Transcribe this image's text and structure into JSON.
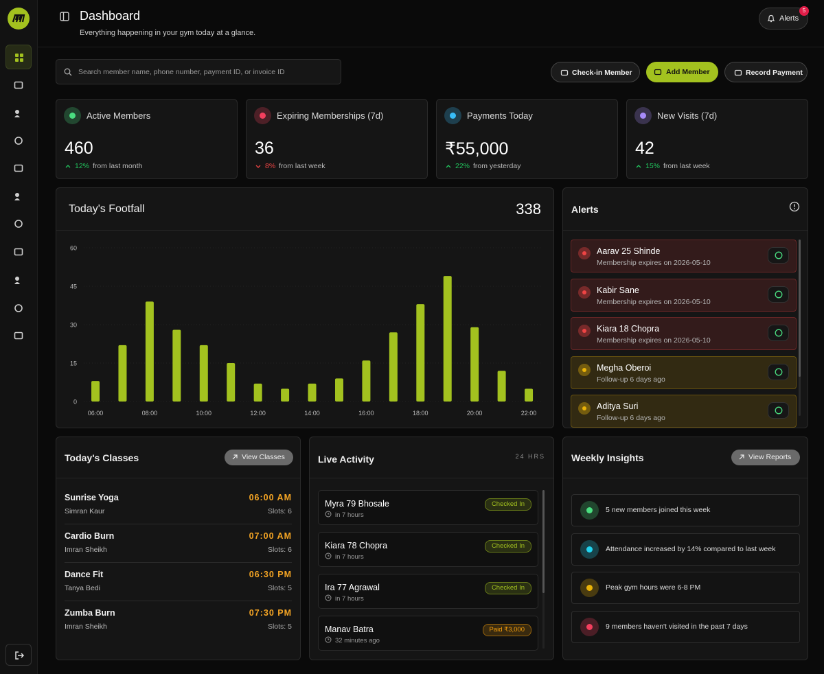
{
  "header": {
    "title": "Dashboard",
    "subtitle": "Everything happening in your gym today at a glance.",
    "alerts_button": "Alerts",
    "alerts_count": 5
  },
  "search": {
    "placeholder": "Search member name, phone number, payment ID, or invoice ID"
  },
  "actions": [
    "Check-in Member",
    "Add Member",
    "Record Payment"
  ],
  "stats": [
    {
      "label": "Active Members",
      "value": 460,
      "change": "12%",
      "note": "from last month",
      "trend": "up",
      "color": "#4ade80"
    },
    {
      "label": "Expiring Memberships (7d)",
      "value": 36,
      "change": "8%",
      "note": "from last week",
      "trend": "down",
      "color": "#f43f5e"
    },
    {
      "label": "Payments Today",
      "value": "₹55,000",
      "change": "22%",
      "note": "from yesterday",
      "trend": "up",
      "color": "#38bdf8"
    },
    {
      "label": "New Visits (7d)",
      "value": 42,
      "change": "15%",
      "note": "from last week",
      "trend": "up",
      "color": "#a78bfa"
    }
  ],
  "footfall": {
    "title": "Today's Footfall",
    "total": 338,
    "chart": {
      "type": "bar",
      "categories": [
        "06:00",
        null,
        "08:00",
        null,
        "10:00",
        null,
        "12:00",
        null,
        "14:00",
        null,
        "16:00",
        null,
        "18:00",
        null,
        "20:00",
        null,
        "22:00"
      ],
      "values": [
        8,
        22,
        39,
        28,
        22,
        15,
        7,
        5,
        7,
        9,
        16,
        27,
        38,
        49,
        29,
        12,
        5
      ],
      "color": "#a3c21f",
      "ylim": [
        0,
        60
      ],
      "yticks": [
        0,
        15,
        30,
        45,
        60
      ],
      "grid": true
    }
  },
  "alerts": {
    "title": "Alerts",
    "items": [
      {
        "name": "Aarav 25 Shinde",
        "detail": "Membership expires on 2026-05-10",
        "color": "#ef4444"
      },
      {
        "name": "Kabir Sane",
        "detail": "Membership expires on 2026-05-10",
        "color": "#ef4444"
      },
      {
        "name": "Kiara 18 Chopra",
        "detail": "Membership expires on 2026-05-10",
        "color": "#ef4444"
      },
      {
        "name": "Megha Oberoi",
        "detail": "Follow-up 6 days ago",
        "color": "#eab308"
      },
      {
        "name": "Aditya Suri",
        "detail": "Follow-up 6 days ago",
        "color": "#eab308"
      }
    ]
  },
  "classes": {
    "title": "Today's Classes",
    "button": "View Classes",
    "items": [
      {
        "name": "Sunrise Yoga",
        "instructor": "Simran Kaur",
        "time": "06:00 AM",
        "slots": "Slots: 6"
      },
      {
        "name": "Cardio Burn",
        "instructor": "Imran Sheikh",
        "time": "07:00 AM",
        "slots": "Slots: 6"
      },
      {
        "name": "Dance Fit",
        "instructor": "Tanya Bedi",
        "time": "06:30 PM",
        "slots": "Slots: 5"
      },
      {
        "name": "Zumba Burn",
        "instructor": "Imran Sheikh",
        "time": "07:30 PM",
        "slots": "Slots: 5"
      }
    ]
  },
  "activity": {
    "title": "Live Activity",
    "range": "24 HRS",
    "items": [
      {
        "name": "Myra 79 Bhosale",
        "time": "in 7 hours",
        "status": "Checked In",
        "color": "#a3c21f"
      },
      {
        "name": "Kiara 78 Chopra",
        "time": "in 7 hours",
        "status": "Checked In",
        "color": "#a3c21f"
      },
      {
        "name": "Ira 77 Agrawal",
        "time": "in 7 hours",
        "status": "Checked In",
        "color": "#a3c21f"
      },
      {
        "name": "Manav Batra",
        "time": "32 minutes ago",
        "status": "Paid ₹3,000",
        "color": "#f59e0b"
      }
    ]
  },
  "insights": {
    "title": "Weekly Insights",
    "button": "View Reports",
    "items": [
      {
        "text": "5 new members joined this week",
        "color": "#4ade80"
      },
      {
        "text": "Attendance increased by 14% compared to last week",
        "color": "#22d3ee"
      },
      {
        "text": "Peak gym hours were 6-8 PM",
        "color": "#eab308"
      },
      {
        "text": "9 members haven't visited in the past 7 days",
        "color": "#f43f5e"
      }
    ]
  }
}
